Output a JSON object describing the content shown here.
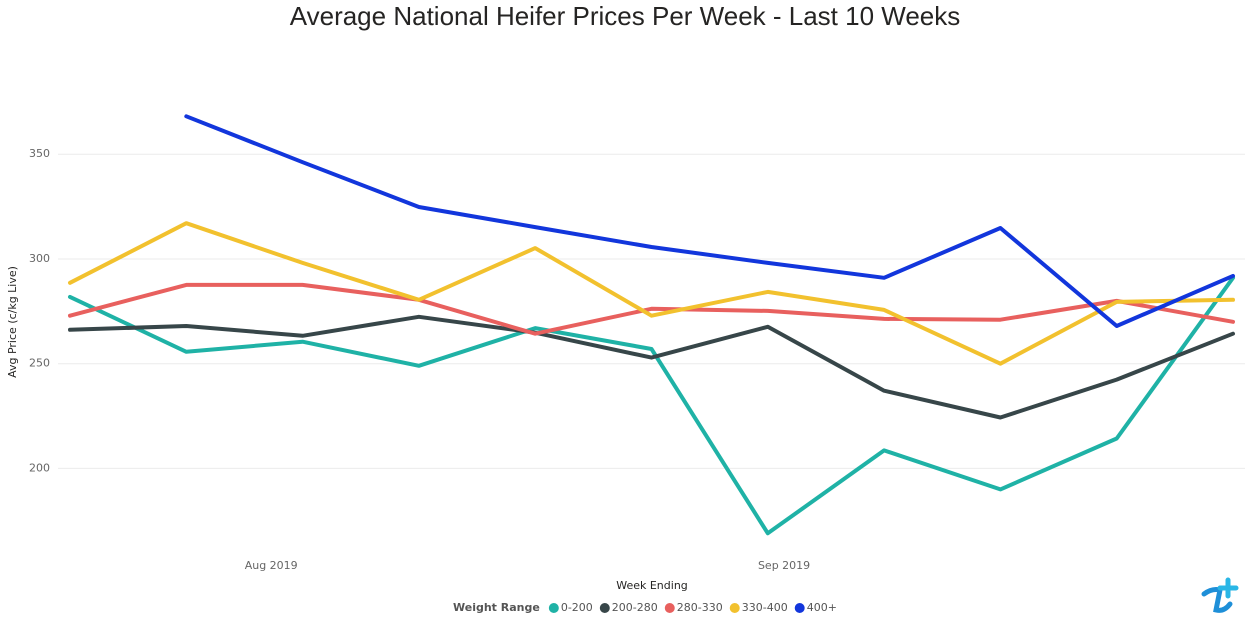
{
  "chart_data": {
    "type": "line",
    "title": "Average National Heifer Prices Per Week - Last 10 Weeks",
    "x_label": "Week Ending",
    "y_label": "Avg Price (c/kg Live)",
    "legend_title": "Weight Range",
    "categories": [
      null,
      null,
      null,
      null,
      null,
      null,
      null,
      null,
      null,
      null,
      null
    ],
    "xlim": [
      0,
      10
    ],
    "xticks": [
      {
        "value": 1.73,
        "label": "Aug 2019"
      },
      {
        "value": 6.14,
        "label": "Sep 2019"
      }
    ],
    "ylim": [
      162,
      395
    ],
    "yticks": [
      200,
      250,
      300,
      350
    ],
    "grid": true,
    "legend": "bottom",
    "series": [
      {
        "name": "0-200",
        "color": "#1fb2a6",
        "values": [
          281.9,
          255.7,
          260.5,
          249,
          267,
          257,
          169,
          208.6,
          190,
          214.3,
          291
        ]
      },
      {
        "name": "200-280",
        "color": "#374649",
        "values": [
          266.2,
          268,
          263.3,
          272.4,
          264.8,
          252.9,
          267.6,
          237.1,
          224.3,
          242.4,
          264.3
        ]
      },
      {
        "name": "280-330",
        "color": "#e8605e",
        "values": [
          272.9,
          287.6,
          287.6,
          280.5,
          264.3,
          276.2,
          275.2,
          271.4,
          271,
          280,
          270
        ]
      },
      {
        "name": "330-400",
        "color": "#f2c12e",
        "values": [
          288.6,
          317.1,
          298.1,
          280.5,
          305.2,
          272.9,
          284.3,
          275.7,
          250,
          279.5,
          280.5
        ]
      },
      {
        "name": "400+",
        "color": "#1236dc",
        "values": [
          null,
          368.1,
          346.2,
          324.8,
          315.2,
          305.7,
          298.1,
          291,
          314.8,
          268,
          291.9
        ]
      }
    ]
  }
}
